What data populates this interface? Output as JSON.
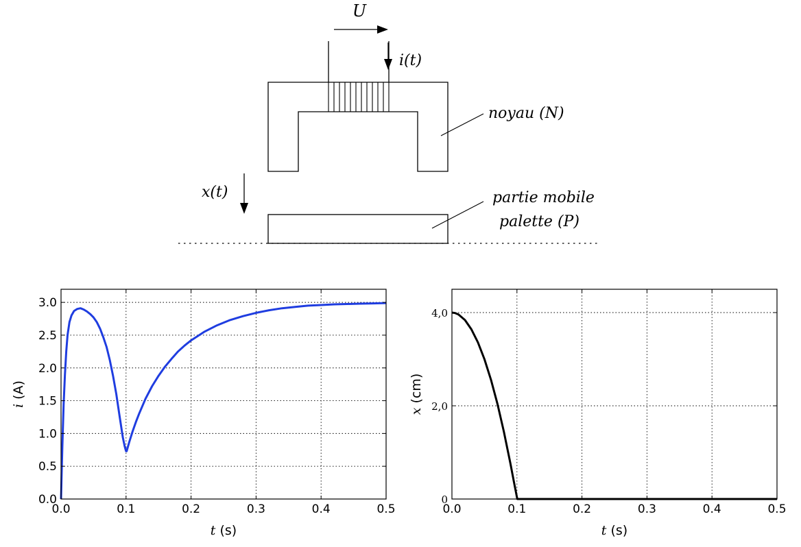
{
  "diagram": {
    "voltage_label": "U",
    "current_label": "i(t)",
    "core_label": "noyau (N)",
    "mobile_label_1": "partie mobile",
    "mobile_label_2": "palette (P)",
    "displacement_label": "x(t)"
  },
  "chart_data": [
    {
      "type": "line",
      "title": "",
      "xlabel_var": "t",
      "xlabel_unit": " (s)",
      "ylabel_var": "i",
      "ylabel_unit": " (A)",
      "xlim": [
        0,
        0.5
      ],
      "ylim": [
        0,
        3.2
      ],
      "xticks": [
        "0.0",
        "0.1",
        "0.2",
        "0.3",
        "0.4",
        "0.5"
      ],
      "yticks": [
        "0.0",
        "0.5",
        "1.0",
        "1.5",
        "2.0",
        "2.5",
        "3.0"
      ],
      "xtick_values": [
        0,
        0.1,
        0.2,
        0.3,
        0.4,
        0.5
      ],
      "ytick_values": [
        0,
        0.5,
        1.0,
        1.5,
        2.0,
        2.5,
        3.0
      ],
      "grid": true,
      "color": "#1f3de0",
      "series": [
        {
          "x": [
            0,
            0.002,
            0.004,
            0.006,
            0.008,
            0.01,
            0.013,
            0.016,
            0.02,
            0.025,
            0.03,
            0.035,
            0.04,
            0.045,
            0.05,
            0.055,
            0.06,
            0.065,
            0.07,
            0.075,
            0.08,
            0.085,
            0.09,
            0.095,
            0.098,
            0.1,
            0.101,
            0.105,
            0.11,
            0.115,
            0.12,
            0.13,
            0.14,
            0.15,
            0.16,
            0.17,
            0.18,
            0.19,
            0.2,
            0.22,
            0.24,
            0.26,
            0.28,
            0.3,
            0.32,
            0.34,
            0.36,
            0.38,
            0.4,
            0.42,
            0.44,
            0.46,
            0.48,
            0.5
          ],
          "y": [
            0,
            0.8,
            1.45,
            1.9,
            2.25,
            2.5,
            2.7,
            2.8,
            2.87,
            2.9,
            2.91,
            2.89,
            2.86,
            2.82,
            2.77,
            2.7,
            2.6,
            2.47,
            2.32,
            2.12,
            1.88,
            1.6,
            1.27,
            0.94,
            0.8,
            0.73,
            0.73,
            0.87,
            1.03,
            1.17,
            1.3,
            1.53,
            1.72,
            1.88,
            2.02,
            2.14,
            2.25,
            2.34,
            2.42,
            2.55,
            2.65,
            2.73,
            2.79,
            2.84,
            2.88,
            2.91,
            2.93,
            2.95,
            2.96,
            2.97,
            2.975,
            2.98,
            2.985,
            2.99
          ]
        }
      ]
    },
    {
      "type": "line",
      "title": "",
      "xlabel_var": "t",
      "xlabel_unit": " (s)",
      "ylabel_var": "x",
      "ylabel_unit": " (cm)",
      "xlim": [
        0,
        0.5
      ],
      "ylim": [
        0,
        4.5
      ],
      "xticks": [
        "0.0",
        "0.1",
        "0.2",
        "0.3",
        "0.4",
        "0.5"
      ],
      "yticks": [
        "0",
        "2,0",
        "4,0"
      ],
      "xtick_values": [
        0,
        0.1,
        0.2,
        0.3,
        0.4,
        0.5
      ],
      "ytick_values": [
        0,
        2.0,
        4.0
      ],
      "grid": true,
      "color": "#000000",
      "series": [
        {
          "x": [
            0,
            0.005,
            0.01,
            0.02,
            0.03,
            0.04,
            0.05,
            0.06,
            0.07,
            0.08,
            0.09,
            0.095,
            0.1005,
            0.11,
            0.2,
            0.3,
            0.4,
            0.5
          ],
          "y": [
            4.0,
            3.99,
            3.96,
            3.84,
            3.64,
            3.36,
            3.0,
            2.56,
            2.04,
            1.44,
            0.76,
            0.39,
            0,
            0,
            0,
            0,
            0,
            0
          ]
        }
      ]
    }
  ]
}
